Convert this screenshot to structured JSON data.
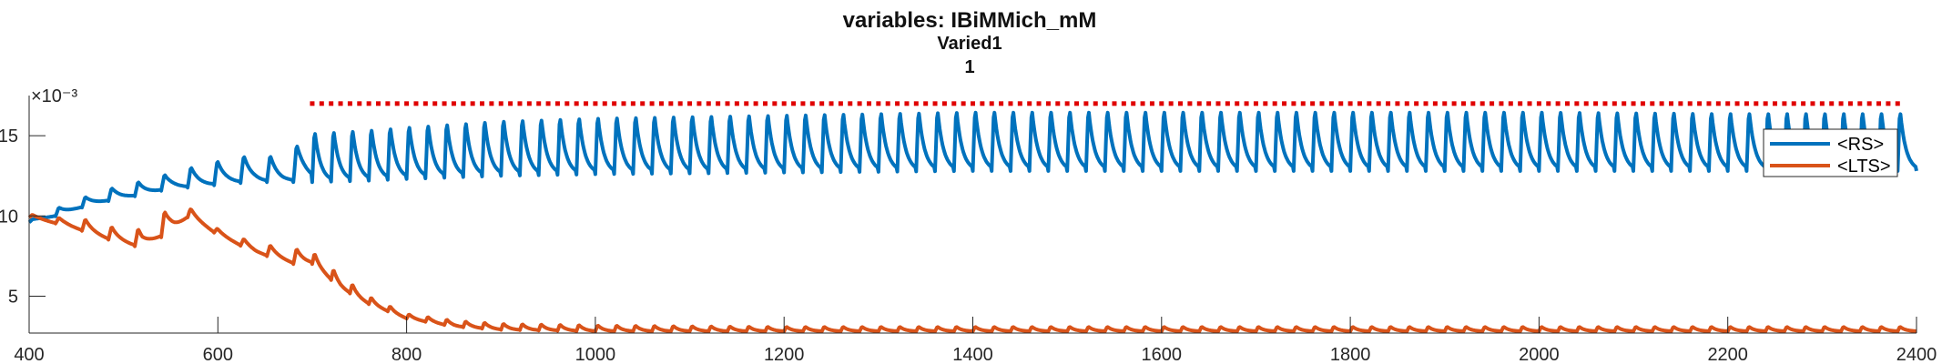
{
  "chart_data": {
    "type": "line",
    "title": "variables: IBiMMich_mM",
    "subtitle_lines": [
      "Varied1",
      "1"
    ],
    "xlabel": "",
    "ylabel": "",
    "xlim": [
      400,
      2400
    ],
    "ylim": [
      0.0027,
      0.0175
    ],
    "x_ticks": [
      "400",
      "600",
      "800",
      "1000",
      "1200",
      "1400",
      "1600",
      "1800",
      "2000",
      "2200",
      "2400"
    ],
    "y_ticks": [
      "5",
      "10",
      "15"
    ],
    "y_exponent_label": "×10⁻³",
    "grid": false,
    "legend_position": "top-right",
    "series": [
      {
        "name": "<RS>",
        "color": "#0072BD",
        "envelope": {
          "x": [
            400,
            430,
            460,
            490,
            520,
            550,
            580,
            610,
            640,
            670,
            700,
            760,
            800,
            850,
            900,
            1000,
            1200,
            1400,
            1600,
            1800,
            2000,
            2200,
            2400
          ],
          "low": [
            0.0096,
            0.01,
            0.0106,
            0.011,
            0.0113,
            0.0117,
            0.0118,
            0.012,
            0.0121,
            0.0121,
            0.0121,
            0.0122,
            0.0123,
            0.0124,
            0.0125,
            0.0126,
            0.0127,
            0.0128,
            0.0128,
            0.0128,
            0.0128,
            0.0128,
            0.0128
          ],
          "high": [
            0.0097,
            0.0105,
            0.0112,
            0.0118,
            0.0122,
            0.0127,
            0.0132,
            0.0136,
            0.0139,
            0.0137,
            0.0154,
            0.0156,
            0.0158,
            0.016,
            0.0162,
            0.0164,
            0.0166,
            0.0168,
            0.0168,
            0.0168,
            0.0168,
            0.0167,
            0.0167
          ]
        }
      },
      {
        "name": "<LTS>",
        "color": "#D95319",
        "envelope": {
          "x": [
            400,
            430,
            460,
            490,
            520,
            550,
            570,
            600,
            640,
            680,
            700,
            730,
            760,
            800,
            850,
            900,
            1000,
            1200,
            1400,
            1600,
            1800,
            2000,
            2200,
            2400
          ],
          "low": [
            0.0099,
            0.0095,
            0.009,
            0.0084,
            0.008,
            0.009,
            0.01,
            0.0088,
            0.0077,
            0.007,
            0.007,
            0.0055,
            0.0045,
            0.0036,
            0.0031,
            0.0029,
            0.0028,
            0.0028,
            0.0028,
            0.0028,
            0.0028,
            0.0028,
            0.0028,
            0.0028
          ],
          "high": [
            0.0101,
            0.0099,
            0.0098,
            0.0093,
            0.0092,
            0.0106,
            0.0105,
            0.0092,
            0.0083,
            0.008,
            0.0078,
            0.0063,
            0.005,
            0.0039,
            0.0035,
            0.0033,
            0.0032,
            0.0031,
            0.0031,
            0.0031,
            0.0031,
            0.0031,
            0.0031,
            0.0031
          ]
        }
      }
    ],
    "markers": {
      "color": "#E00000",
      "y": 0.017,
      "x_start": 700,
      "x_end": 2380,
      "period": 10
    }
  }
}
